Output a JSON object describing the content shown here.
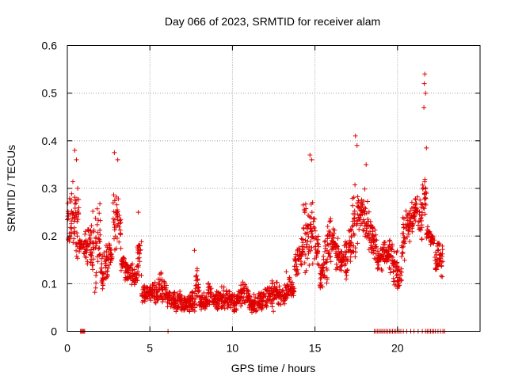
{
  "chart_data": {
    "type": "scatter",
    "title": "Day 066 of 2023, SRMTID for receiver alam",
    "xlabel": "GPS time / hours",
    "ylabel": "SRMTID / TECUs",
    "xlim": [
      0,
      25
    ],
    "ylim": [
      0,
      0.6
    ],
    "x_ticks": [
      0,
      5,
      10,
      15,
      20
    ],
    "y_ticks": [
      0,
      0.1,
      0.2,
      0.3,
      0.4,
      0.5,
      0.6
    ],
    "x_tick_labels": [
      "0",
      "5",
      "10",
      "15",
      "20"
    ],
    "y_tick_labels": [
      "0",
      "0.1",
      "0.2",
      "0.3",
      "0.4",
      "0.5",
      "0.6"
    ],
    "grid": true,
    "marker": "+",
    "color": "#e00000",
    "series": [
      {
        "name": "SRMTID",
        "envelope": [
          [
            0.0,
            0.17,
            0.3
          ],
          [
            0.25,
            0.18,
            0.32
          ],
          [
            0.5,
            0.15,
            0.35
          ],
          [
            0.7,
            0.16,
            0.2
          ],
          [
            1.0,
            0.12,
            0.22
          ],
          [
            1.25,
            0.11,
            0.24
          ],
          [
            1.5,
            0.07,
            0.27
          ],
          [
            1.75,
            0.1,
            0.3
          ],
          [
            2.0,
            0.08,
            0.17
          ],
          [
            2.25,
            0.1,
            0.19
          ],
          [
            2.5,
            0.12,
            0.2
          ],
          [
            2.75,
            0.15,
            0.3
          ],
          [
            3.0,
            0.14,
            0.32
          ],
          [
            3.25,
            0.12,
            0.16
          ],
          [
            3.5,
            0.1,
            0.15
          ],
          [
            3.75,
            0.09,
            0.15
          ],
          [
            4.0,
            0.09,
            0.14
          ],
          [
            4.25,
            0.1,
            0.22
          ],
          [
            4.5,
            0.05,
            0.1
          ],
          [
            4.75,
            0.06,
            0.1
          ],
          [
            5.0,
            0.06,
            0.11
          ],
          [
            5.25,
            0.05,
            0.11
          ],
          [
            5.5,
            0.06,
            0.13
          ],
          [
            5.75,
            0.06,
            0.12
          ],
          [
            6.0,
            0.05,
            0.09
          ],
          [
            6.25,
            0.04,
            0.09
          ],
          [
            6.5,
            0.04,
            0.08
          ],
          [
            6.75,
            0.04,
            0.09
          ],
          [
            7.0,
            0.04,
            0.08
          ],
          [
            7.25,
            0.04,
            0.08
          ],
          [
            7.5,
            0.04,
            0.09
          ],
          [
            7.75,
            0.05,
            0.15
          ],
          [
            8.0,
            0.04,
            0.08
          ],
          [
            8.25,
            0.04,
            0.09
          ],
          [
            8.5,
            0.05,
            0.11
          ],
          [
            8.75,
            0.04,
            0.09
          ],
          [
            9.0,
            0.04,
            0.09
          ],
          [
            9.25,
            0.04,
            0.1
          ],
          [
            9.5,
            0.04,
            0.09
          ],
          [
            9.75,
            0.04,
            0.09
          ],
          [
            10.0,
            0.04,
            0.08
          ],
          [
            10.25,
            0.05,
            0.09
          ],
          [
            10.5,
            0.05,
            0.11
          ],
          [
            10.75,
            0.05,
            0.1
          ],
          [
            11.0,
            0.03,
            0.08
          ],
          [
            11.25,
            0.03,
            0.08
          ],
          [
            11.5,
            0.04,
            0.09
          ],
          [
            11.75,
            0.04,
            0.1
          ],
          [
            12.0,
            0.04,
            0.1
          ],
          [
            12.25,
            0.04,
            0.11
          ],
          [
            12.5,
            0.05,
            0.11
          ],
          [
            12.75,
            0.05,
            0.1
          ],
          [
            13.0,
            0.05,
            0.1
          ],
          [
            13.25,
            0.06,
            0.13
          ],
          [
            13.5,
            0.07,
            0.11
          ],
          [
            13.75,
            0.1,
            0.19
          ],
          [
            14.0,
            0.13,
            0.2
          ],
          [
            14.25,
            0.09,
            0.3
          ],
          [
            14.5,
            0.12,
            0.25
          ],
          [
            14.75,
            0.14,
            0.28
          ],
          [
            15.0,
            0.13,
            0.22
          ],
          [
            15.25,
            0.08,
            0.16
          ],
          [
            15.5,
            0.08,
            0.2
          ],
          [
            15.75,
            0.12,
            0.25
          ],
          [
            16.0,
            0.15,
            0.23
          ],
          [
            16.25,
            0.12,
            0.2
          ],
          [
            16.5,
            0.12,
            0.18
          ],
          [
            16.75,
            0.1,
            0.2
          ],
          [
            17.0,
            0.14,
            0.22
          ],
          [
            17.25,
            0.15,
            0.32
          ],
          [
            17.5,
            0.18,
            0.3
          ],
          [
            17.75,
            0.2,
            0.3
          ],
          [
            18.0,
            0.18,
            0.3
          ],
          [
            18.25,
            0.16,
            0.26
          ],
          [
            18.5,
            0.14,
            0.22
          ],
          [
            18.75,
            0.12,
            0.18
          ],
          [
            19.0,
            0.12,
            0.2
          ],
          [
            19.25,
            0.14,
            0.18
          ],
          [
            19.5,
            0.12,
            0.2
          ],
          [
            19.75,
            0.09,
            0.18
          ],
          [
            20.0,
            0.08,
            0.14
          ],
          [
            20.25,
            0.13,
            0.25
          ],
          [
            20.5,
            0.18,
            0.26
          ],
          [
            20.75,
            0.2,
            0.28
          ],
          [
            21.0,
            0.22,
            0.29
          ],
          [
            21.25,
            0.18,
            0.29
          ],
          [
            21.5,
            0.24,
            0.33
          ],
          [
            21.75,
            0.19,
            0.22
          ],
          [
            22.0,
            0.18,
            0.21
          ],
          [
            22.25,
            0.12,
            0.2
          ],
          [
            22.5,
            0.11,
            0.19
          ]
        ],
        "spikes": [
          [
            0.45,
            0.38
          ],
          [
            0.55,
            0.36
          ],
          [
            2.85,
            0.375
          ],
          [
            3.05,
            0.36
          ],
          [
            4.3,
            0.25
          ],
          [
            7.7,
            0.17
          ],
          [
            14.7,
            0.37
          ],
          [
            14.8,
            0.36
          ],
          [
            17.45,
            0.41
          ],
          [
            17.55,
            0.39
          ],
          [
            18.1,
            0.35
          ],
          [
            21.65,
            0.54
          ],
          [
            21.62,
            0.52
          ],
          [
            21.7,
            0.5
          ],
          [
            21.6,
            0.47
          ],
          [
            21.75,
            0.385
          ]
        ],
        "zeros": [
          0.8,
          0.85,
          0.9,
          0.95,
          1.0,
          1.05,
          6.1,
          18.6,
          18.7,
          18.8,
          18.9,
          19.0,
          19.1,
          19.2,
          19.3,
          19.4,
          19.5,
          19.6,
          19.7,
          19.8,
          19.9,
          20.0,
          20.1,
          20.2,
          20.35,
          20.55,
          20.8,
          21.0,
          21.25,
          21.5,
          21.7,
          21.8,
          21.9,
          22.0,
          22.1,
          22.2,
          22.3,
          22.45,
          22.6,
          22.75,
          22.85
        ]
      }
    ]
  }
}
